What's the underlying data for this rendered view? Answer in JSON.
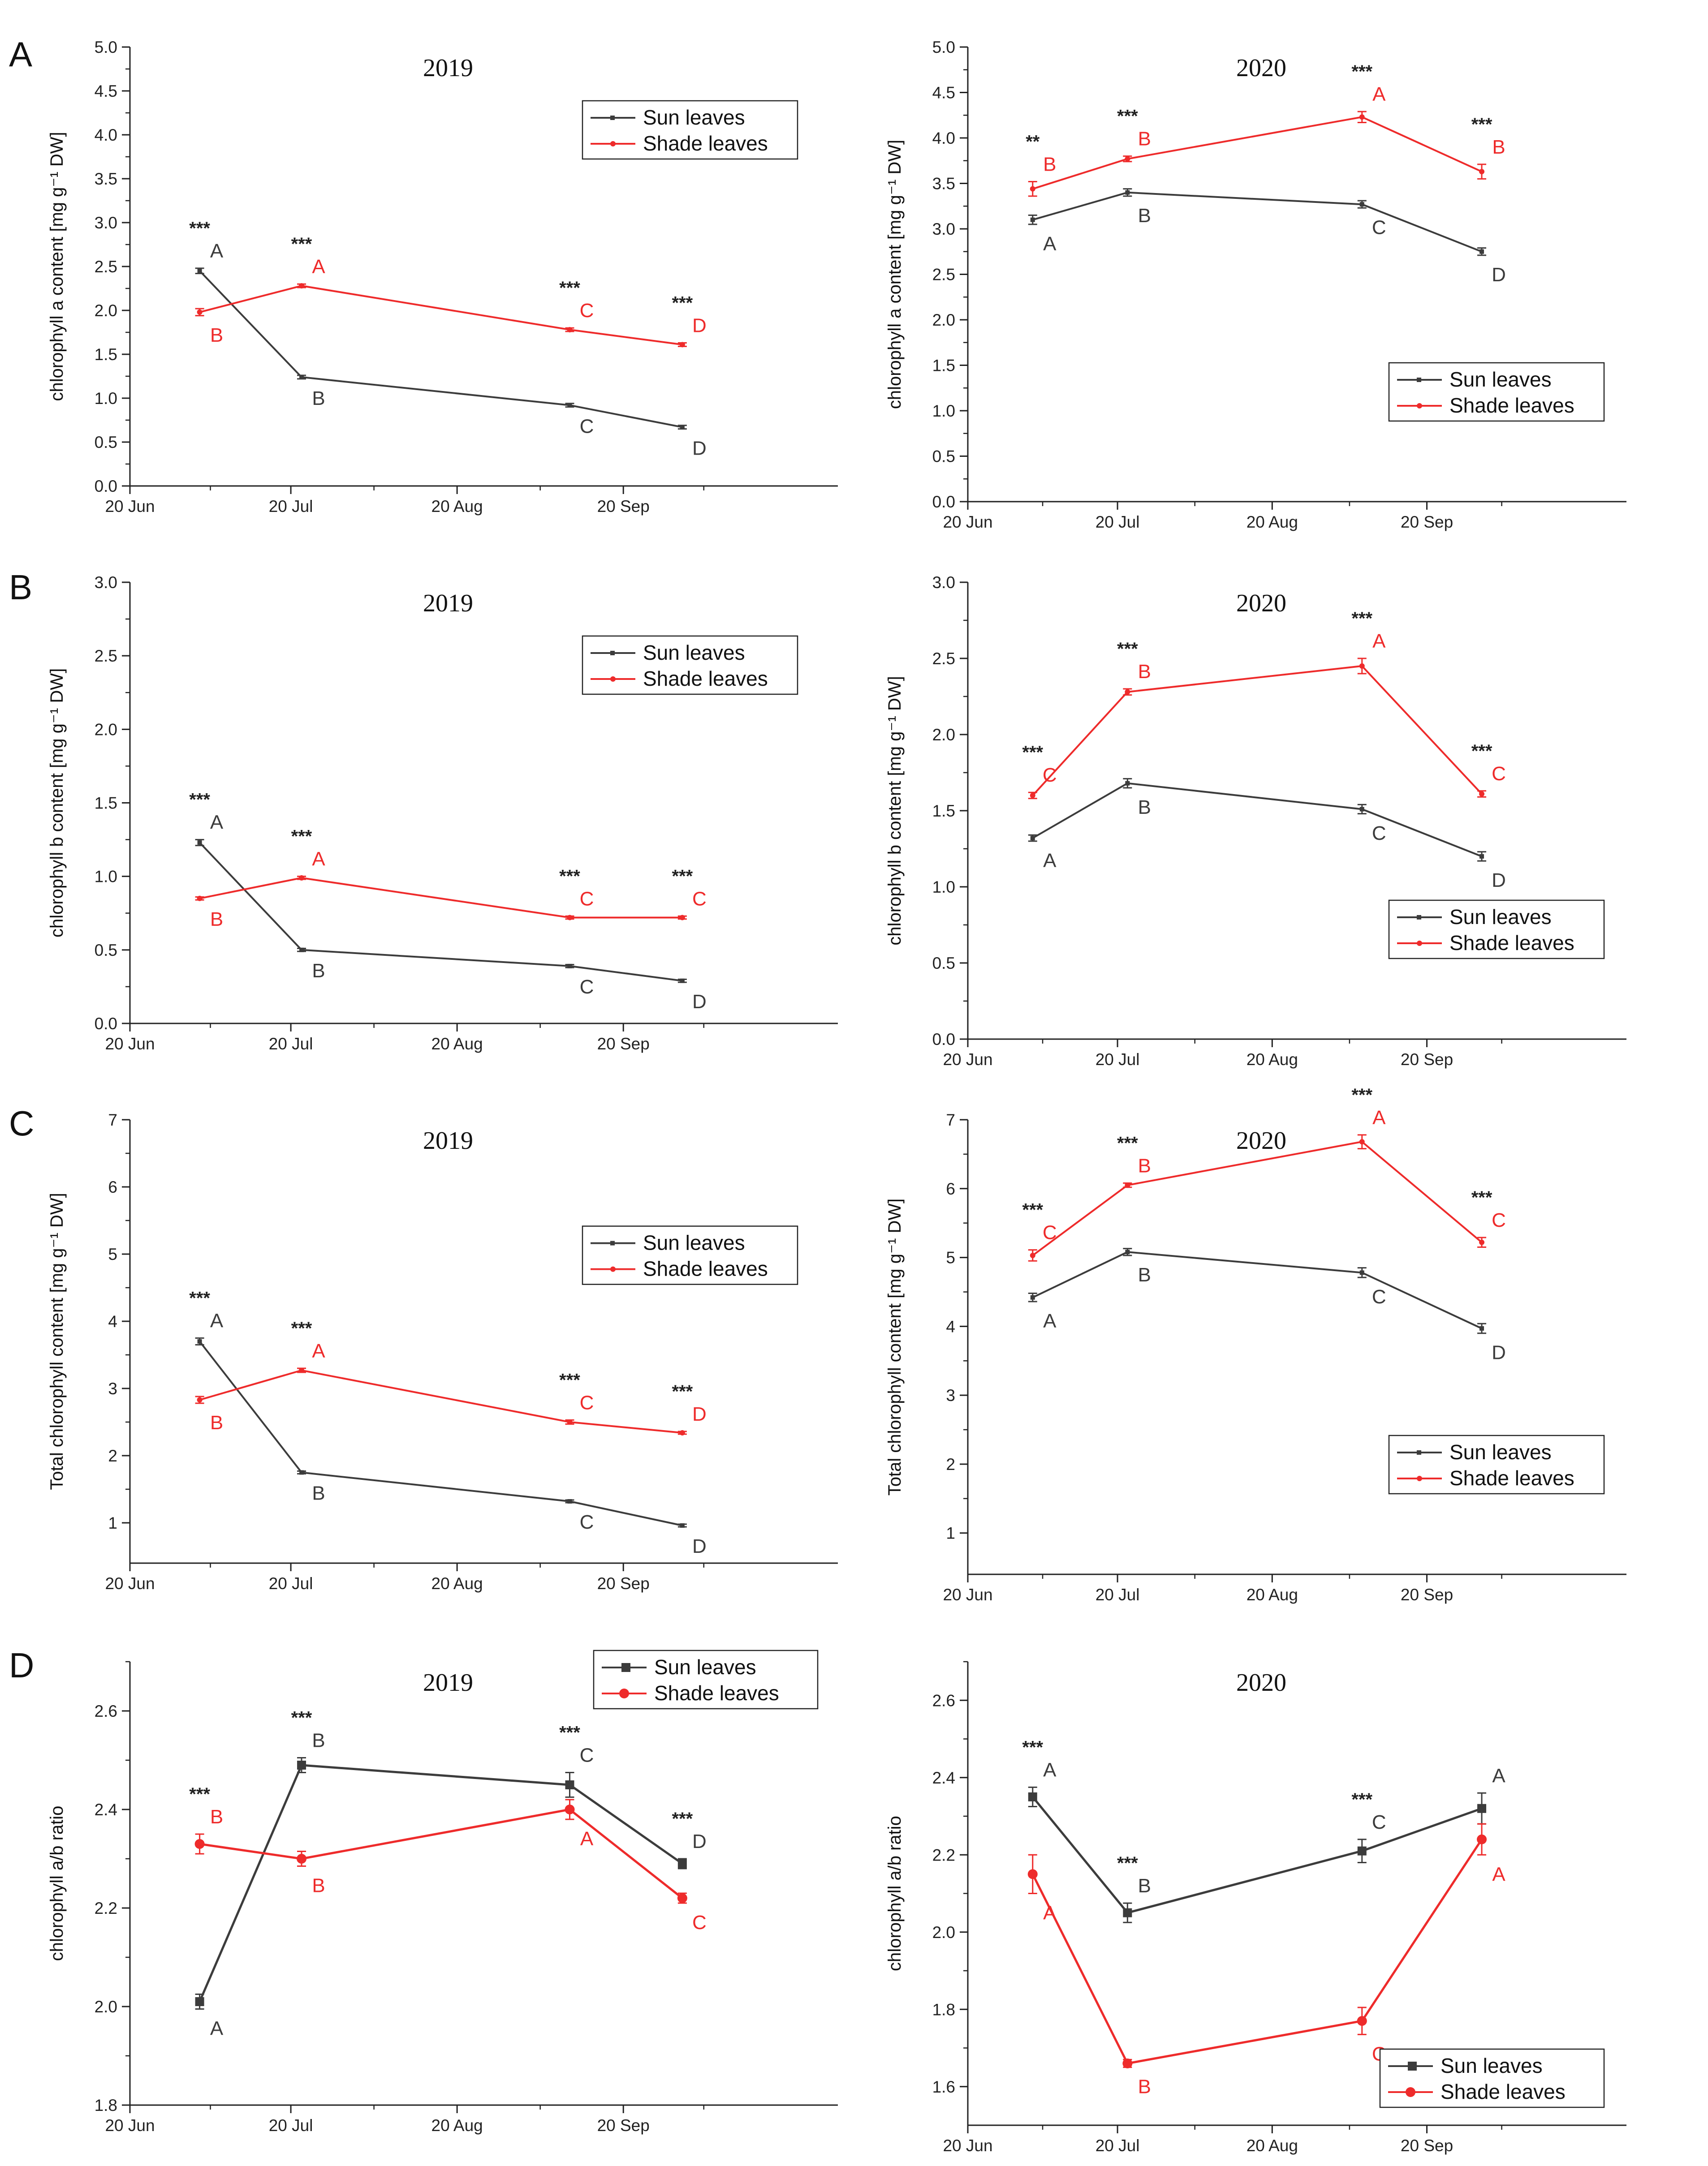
{
  "figure": {
    "x_tick_labels": [
      "20 Jun",
      "20 Jul",
      "20 Aug",
      "20 Sep"
    ],
    "legend_labels": [
      "Sun leaves",
      "Shade leaves"
    ],
    "colors": {
      "sun": "#3c3c3c",
      "shade": "#ee2b2b",
      "axis": "#222222"
    }
  },
  "chart_data": [
    {
      "panel": "A",
      "year": "2019",
      "type": "line",
      "title": "2019",
      "ylabel": "chlorophyll a content [mg g⁻¹ DW]",
      "ylim": [
        0,
        5.0
      ],
      "yticks": [
        "0.0",
        "0.5",
        "1.0",
        "1.5",
        "2.0",
        "2.5",
        "3.0",
        "3.5",
        "4.0",
        "4.5",
        "5.0"
      ],
      "xlim": [
        "20 Jun",
        "30 Oct"
      ],
      "legend_position": "upper-right",
      "marker": "small",
      "x": [
        "Jul 3",
        "Jul 22",
        "Sep 10",
        "Oct 1"
      ],
      "series": [
        {
          "name": "Sun leaves",
          "values": [
            2.45,
            1.24,
            0.92,
            0.67
          ],
          "errors": [
            0.03,
            0.02,
            0.02,
            0.02
          ],
          "letters": [
            "A",
            "B",
            "C",
            "D"
          ]
        },
        {
          "name": "Shade leaves",
          "values": [
            1.98,
            2.28,
            1.78,
            1.61
          ],
          "errors": [
            0.04,
            0.02,
            0.02,
            0.02
          ],
          "letters": [
            "B",
            "A",
            "C",
            "D"
          ]
        }
      ],
      "significance": [
        "***",
        "***",
        "***",
        "***"
      ]
    },
    {
      "panel": "A",
      "year": "2020",
      "type": "line",
      "title": "2020",
      "ylabel": "chlorophyll a content [mg g⁻¹ DW]",
      "ylim": [
        0,
        5.0
      ],
      "yticks": [
        "0.0",
        "0.5",
        "1.0",
        "1.5",
        "2.0",
        "2.5",
        "3.0",
        "3.5",
        "4.0",
        "4.5",
        "5.0"
      ],
      "xlim": [
        "20 Jun",
        "30 Oct"
      ],
      "legend_position": "lower-right",
      "marker": "small",
      "x": [
        "Jul 3",
        "Jul 22",
        "Sep 7",
        "Oct 1"
      ],
      "series": [
        {
          "name": "Sun leaves",
          "values": [
            3.1,
            3.4,
            3.27,
            2.75
          ],
          "errors": [
            0.05,
            0.04,
            0.04,
            0.04
          ],
          "letters": [
            "A",
            "B",
            "C",
            "D"
          ]
        },
        {
          "name": "Shade leaves",
          "values": [
            3.44,
            3.77,
            4.23,
            3.63
          ],
          "errors": [
            0.08,
            0.03,
            0.06,
            0.08
          ],
          "letters": [
            "B",
            "B",
            "A",
            "B"
          ]
        }
      ],
      "significance": [
        "**",
        "***",
        "***",
        "***"
      ]
    },
    {
      "panel": "B",
      "year": "2019",
      "type": "line",
      "title": "2019",
      "ylabel": "chlorophyll b content [mg g⁻¹ DW]",
      "ylim": [
        0,
        3.0
      ],
      "yticks": [
        "0.0",
        "0.5",
        "1.0",
        "1.5",
        "2.0",
        "2.5",
        "3.0"
      ],
      "xlim": [
        "20 Jun",
        "30 Oct"
      ],
      "legend_position": "upper-right",
      "marker": "small",
      "x": [
        "Jul 3",
        "Jul 22",
        "Sep 10",
        "Oct 1"
      ],
      "series": [
        {
          "name": "Sun leaves",
          "values": [
            1.23,
            0.5,
            0.39,
            0.29
          ],
          "errors": [
            0.02,
            0.01,
            0.01,
            0.01
          ],
          "letters": [
            "A",
            "B",
            "C",
            "D"
          ]
        },
        {
          "name": "Shade leaves",
          "values": [
            0.85,
            0.99,
            0.72,
            0.72
          ],
          "errors": [
            0.01,
            0.01,
            0.01,
            0.01
          ],
          "letters": [
            "B",
            "A",
            "C",
            "C"
          ]
        }
      ],
      "significance": [
        "***",
        "***",
        "***",
        "***"
      ]
    },
    {
      "panel": "B",
      "year": "2020",
      "type": "line",
      "title": "2020",
      "ylabel": "chlorophyll b content [mg g⁻¹ DW]",
      "ylim": [
        0,
        3.0
      ],
      "yticks": [
        "0.0",
        "0.5",
        "1.0",
        "1.5",
        "2.0",
        "2.5",
        "3.0"
      ],
      "xlim": [
        "20 Jun",
        "30 Oct"
      ],
      "legend_position": "lower-right",
      "marker": "small",
      "x": [
        "Jul 3",
        "Jul 22",
        "Sep 7",
        "Oct 1"
      ],
      "series": [
        {
          "name": "Sun leaves",
          "values": [
            1.32,
            1.68,
            1.51,
            1.2
          ],
          "errors": [
            0.02,
            0.03,
            0.03,
            0.03
          ],
          "letters": [
            "A",
            "B",
            "C",
            "D"
          ]
        },
        {
          "name": "Shade leaves",
          "values": [
            1.6,
            2.28,
            2.45,
            1.61
          ],
          "errors": [
            0.02,
            0.02,
            0.05,
            0.02
          ],
          "letters": [
            "C",
            "B",
            "A",
            "C"
          ]
        }
      ],
      "significance": [
        "***",
        "***",
        "***",
        "***"
      ]
    },
    {
      "panel": "C",
      "year": "2019",
      "type": "line",
      "title": "2019",
      "ylabel": "Total chlorophyll content [mg g⁻¹ DW]",
      "ylim": [
        0.4,
        7.0
      ],
      "yticks": [
        "1",
        "2",
        "3",
        "4",
        "5",
        "6",
        "7"
      ],
      "xlim": [
        "20 Jun",
        "30 Oct"
      ],
      "legend_position": "center-right",
      "marker": "small",
      "x": [
        "Jul 3",
        "Jul 22",
        "Sep 10",
        "Oct 1"
      ],
      "series": [
        {
          "name": "Sun leaves",
          "values": [
            3.7,
            1.75,
            1.32,
            0.96
          ],
          "errors": [
            0.05,
            0.02,
            0.02,
            0.02
          ],
          "letters": [
            "A",
            "B",
            "C",
            "D"
          ]
        },
        {
          "name": "Shade leaves",
          "values": [
            2.83,
            3.27,
            2.5,
            2.34
          ],
          "errors": [
            0.05,
            0.03,
            0.03,
            0.02
          ],
          "letters": [
            "B",
            "A",
            "C",
            "D"
          ]
        }
      ],
      "significance": [
        "***",
        "***",
        "***",
        "***"
      ]
    },
    {
      "panel": "C",
      "year": "2020",
      "type": "line",
      "title": "2020",
      "ylabel": "Total chlorophyll content [mg g⁻¹ DW]",
      "ylim": [
        0.4,
        7.0
      ],
      "yticks": [
        "1",
        "2",
        "3",
        "4",
        "5",
        "6",
        "7"
      ],
      "xlim": [
        "20 Jun",
        "30 Oct"
      ],
      "legend_position": "lower-right",
      "marker": "small",
      "x": [
        "Jul 3",
        "Jul 22",
        "Sep 7",
        "Oct 1"
      ],
      "series": [
        {
          "name": "Sun leaves",
          "values": [
            4.42,
            5.08,
            4.78,
            3.97
          ],
          "errors": [
            0.06,
            0.05,
            0.07,
            0.07
          ],
          "letters": [
            "A",
            "B",
            "C",
            "D"
          ]
        },
        {
          "name": "Shade leaves",
          "values": [
            5.03,
            6.05,
            6.68,
            5.22
          ],
          "errors": [
            0.08,
            0.03,
            0.1,
            0.07
          ],
          "letters": [
            "C",
            "B",
            "A",
            "C"
          ]
        }
      ],
      "significance": [
        "***",
        "***",
        "***",
        "***"
      ]
    },
    {
      "panel": "D",
      "year": "2019",
      "type": "line",
      "title": "2019",
      "ylabel": "chlorophyll a/b ratio",
      "ylim": [
        1.8,
        2.7
      ],
      "yticks": [
        "1.8",
        "2.0",
        "2.2",
        "2.4",
        "2.6"
      ],
      "xlim": [
        "20 Jun",
        "30 Oct"
      ],
      "legend_position": "upper-right",
      "marker": "large",
      "x": [
        "Jul 3",
        "Jul 22",
        "Sep 10",
        "Oct 1"
      ],
      "series": [
        {
          "name": "Sun leaves",
          "values": [
            2.01,
            2.49,
            2.45,
            2.29
          ],
          "errors": [
            0.015,
            0.015,
            0.025,
            0.01
          ],
          "letters": [
            "A",
            "B",
            "C",
            "D"
          ]
        },
        {
          "name": "Shade leaves",
          "values": [
            2.33,
            2.3,
            2.4,
            2.22
          ],
          "errors": [
            0.02,
            0.015,
            0.02,
            0.01
          ],
          "letters": [
            "B",
            "B",
            "A",
            "C"
          ]
        }
      ],
      "significance": [
        "***",
        "***",
        "***",
        "***"
      ]
    },
    {
      "panel": "D",
      "year": "2020",
      "type": "line",
      "title": "2020",
      "ylabel": "chlorophyll a/b ratio",
      "ylim": [
        1.5,
        2.7
      ],
      "yticks": [
        "1.6",
        "1.8",
        "2.0",
        "2.2",
        "2.4",
        "2.6"
      ],
      "xlim": [
        "20 Jun",
        "30 Oct"
      ],
      "legend_position": "lower-right",
      "marker": "large",
      "x": [
        "Jul 3",
        "Jul 22",
        "Sep 7",
        "Oct 1"
      ],
      "series": [
        {
          "name": "Sun leaves",
          "values": [
            2.35,
            2.05,
            2.21,
            2.32
          ],
          "errors": [
            0.025,
            0.025,
            0.03,
            0.04
          ],
          "letters": [
            "A",
            "B",
            "C",
            "A"
          ]
        },
        {
          "name": "Shade leaves",
          "values": [
            2.15,
            1.66,
            1.77,
            2.24
          ],
          "errors": [
            0.05,
            0.01,
            0.035,
            0.04
          ],
          "letters": [
            "A",
            "B",
            "C",
            "A"
          ]
        }
      ],
      "significance": [
        "***",
        "***",
        "***",
        ""
      ]
    }
  ],
  "panel_labels": [
    "A",
    "B",
    "C",
    "D"
  ]
}
